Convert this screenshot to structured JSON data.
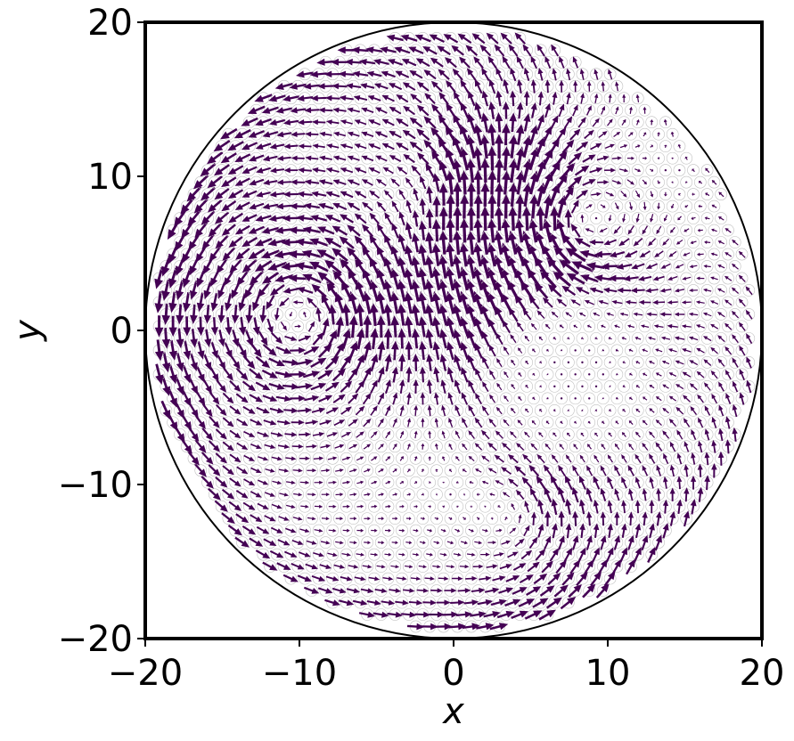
{
  "chart_data": {
    "type": "quiver",
    "title": "",
    "xlabel": "x",
    "ylabel": "y",
    "xlim": [
      -20,
      20
    ],
    "ylim": [
      -20,
      20
    ],
    "xticks": [
      -20,
      -10,
      0,
      10,
      20
    ],
    "yticks": [
      -20,
      -10,
      0,
      10,
      20
    ],
    "xtick_labels": [
      "−20",
      "−10",
      "0",
      "10",
      "20"
    ],
    "ytick_labels": [
      "−20",
      "−10",
      "0",
      "10",
      "20"
    ],
    "domain": {
      "shape": "circle",
      "center": [
        0,
        0
      ],
      "radius": 20
    },
    "lattice_spacing": 0.9,
    "vortices": [
      {
        "center": [
          -10,
          1
        ],
        "strength": 1.0,
        "core": 3.5,
        "sense": "counterclockwise"
      },
      {
        "center": [
          8,
          7
        ],
        "strength": -1.0,
        "core": 3.5,
        "sense": "clockwise"
      },
      {
        "center": [
          -1,
          10
        ],
        "strength": 0.45,
        "core": 3.0,
        "sense": "counterclockwise"
      },
      {
        "center": [
          4,
          -12
        ],
        "strength": 0.5,
        "core": 3.0,
        "sense": "counterclockwise"
      }
    ],
    "quiet_region": {
      "center": [
        8,
        -3
      ],
      "radius": 7
    },
    "wall_flow": {
      "sense": "counterclockwise",
      "strength": 0.55,
      "width": 5
    },
    "colors": {
      "arrow": "#440154",
      "particle_ring": "#bfbfbf",
      "boundary": "#000000",
      "axes": "#000000"
    },
    "grid": false,
    "legend": "none"
  }
}
